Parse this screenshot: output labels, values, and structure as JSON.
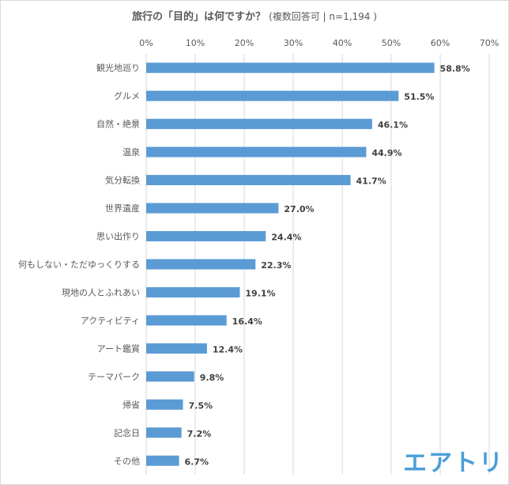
{
  "title": "旅行の「目的」は何ですか？",
  "subtitle": "(複数回答可 | n=1,194 )",
  "logo_text": "エアトリ",
  "colors": {
    "bar": "#5b9bd5",
    "grid": "#d9d9d9",
    "text": "#595959"
  },
  "chart_data": {
    "type": "bar",
    "orientation": "horizontal",
    "title": "旅行の「目的」は何ですか？",
    "subtitle": "(複数回答可 | n=1,194 )",
    "categories": [
      "観光地巡り",
      "グルメ",
      "自然・絶景",
      "温泉",
      "気分転換",
      "世界遺産",
      "思い出作り",
      "何もしない・ただゆっくりする",
      "現地の人とふれあい",
      "アクティビティ",
      "アート鑑賞",
      "テーマパーク",
      "帰省",
      "記念日",
      "その他"
    ],
    "values": [
      58.8,
      51.5,
      46.1,
      44.9,
      41.7,
      27.0,
      24.4,
      22.3,
      19.1,
      16.4,
      12.4,
      9.8,
      7.5,
      7.2,
      6.7
    ],
    "value_labels": [
      "58.8%",
      "51.5%",
      "46.1%",
      "44.9%",
      "41.7%",
      "27.0%",
      "24.4%",
      "22.3%",
      "19.1%",
      "16.4%",
      "12.4%",
      "9.8%",
      "7.5%",
      "7.2%",
      "6.7%"
    ],
    "xlim": [
      0,
      70
    ],
    "x_ticks": [
      "0%",
      "10%",
      "20%",
      "30%",
      "40%",
      "50%",
      "60%",
      "70%"
    ],
    "axis_position": "top",
    "grid": true,
    "legend": "none"
  }
}
